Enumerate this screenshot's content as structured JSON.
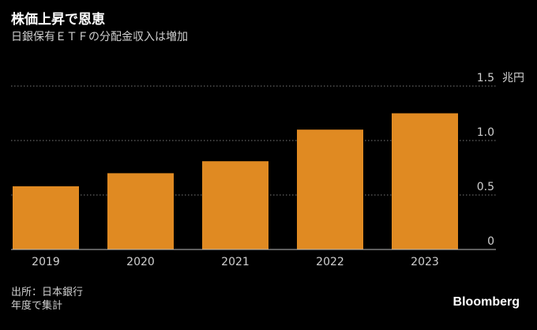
{
  "title": "株価上昇で恩恵",
  "subtitle": "日銀保有ＥＴＦの分配金収入は増加",
  "source_line1": "出所：日本銀行",
  "source_line2": "年度で集計",
  "brand": "Bloomberg",
  "colors": {
    "background": "#000000",
    "bar": "#e08a22",
    "grid": "#7a7a7a",
    "tick_text": "#cfcfcf"
  },
  "chart_data": {
    "type": "bar",
    "title": "株価上昇で恩恵",
    "subtitle": "日銀保有ＥＴＦの分配金収入は増加",
    "categories": [
      "2019",
      "2020",
      "2021",
      "2022",
      "2023"
    ],
    "values": [
      0.58,
      0.7,
      0.81,
      1.1,
      1.25
    ],
    "y_unit_label": "兆円",
    "ylim": [
      0,
      1.5
    ],
    "yticks": [
      0,
      0.5,
      1.0,
      1.5
    ],
    "ytick_labels": [
      "0",
      "0.5",
      "1.0",
      "1.5"
    ],
    "y_axis_side": "right",
    "grid": true
  }
}
